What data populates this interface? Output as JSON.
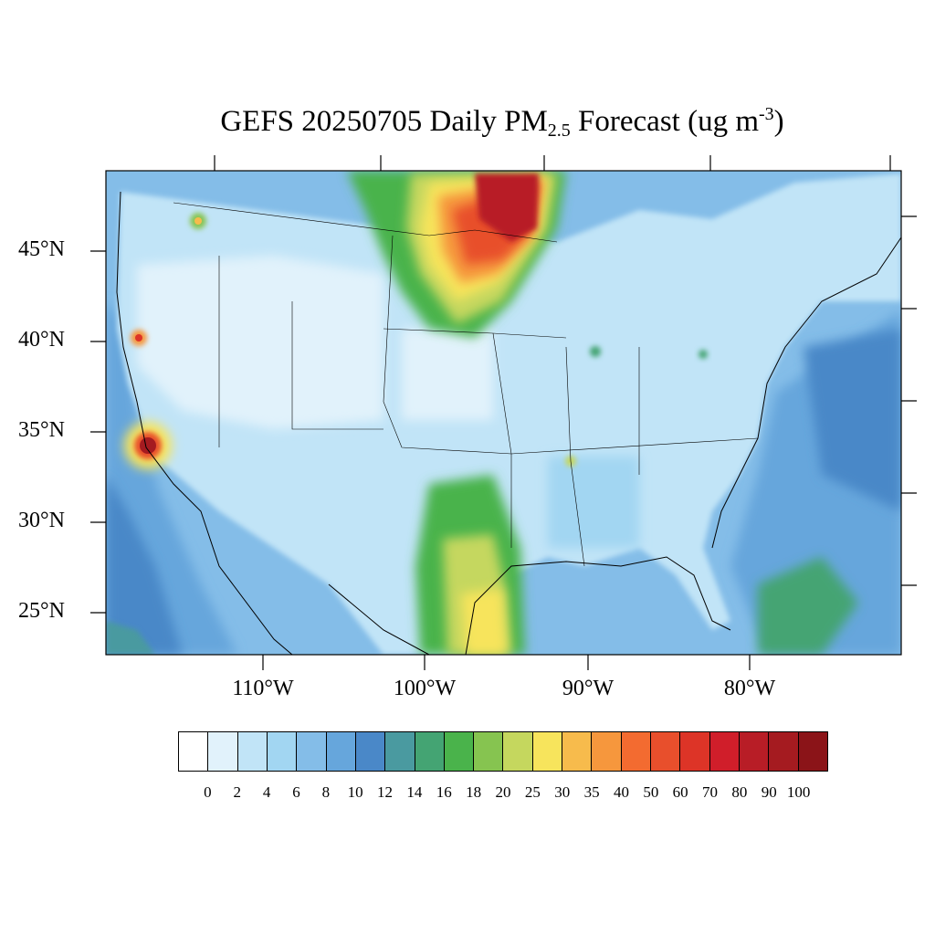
{
  "title": {
    "prefix": "GEFS 20250705 Daily PM",
    "subscript": "2.5",
    "middle": " Forecast (ug m",
    "superscript": "-3",
    "suffix": ")"
  },
  "lat_labels": [
    "45°N",
    "40°N",
    "35°N",
    "30°N",
    "25°N"
  ],
  "lon_labels": [
    "110°W",
    "100°W",
    "90°W",
    "80°W"
  ],
  "colorbar": {
    "labels": [
      "0",
      "2",
      "4",
      "6",
      "8",
      "10",
      "12",
      "14",
      "16",
      "18",
      "20",
      "25",
      "30",
      "35",
      "40",
      "50",
      "60",
      "70",
      "80",
      "90",
      "100"
    ],
    "colors": [
      "#ffffff",
      "#e1f2fb",
      "#c1e4f7",
      "#a2d6f2",
      "#84bde8",
      "#66a6dc",
      "#4a88c8",
      "#4a9aa0",
      "#44a473",
      "#4ab34b",
      "#86c450",
      "#c5d75e",
      "#f7e45c",
      "#f7bb4c",
      "#f6973d",
      "#f36b30",
      "#e84f2c",
      "#dd3427",
      "#d01e2a",
      "#b81d26",
      "#a51b20",
      "#8b1418"
    ]
  },
  "map": {
    "extent": {
      "lon": [
        -125,
        -65
      ],
      "lat": [
        22.5,
        49.5
      ]
    },
    "field_levels": {
      "background_ocean": 6,
      "land_base": 2
    },
    "plumes": [
      {
        "name": "Northern Plains smoke",
        "peak": 100
      },
      {
        "name": "Southern California",
        "peak": 100
      },
      {
        "name": "South Texas dust",
        "peak": 30
      },
      {
        "name": "Caribbean",
        "peak": 16
      }
    ]
  }
}
